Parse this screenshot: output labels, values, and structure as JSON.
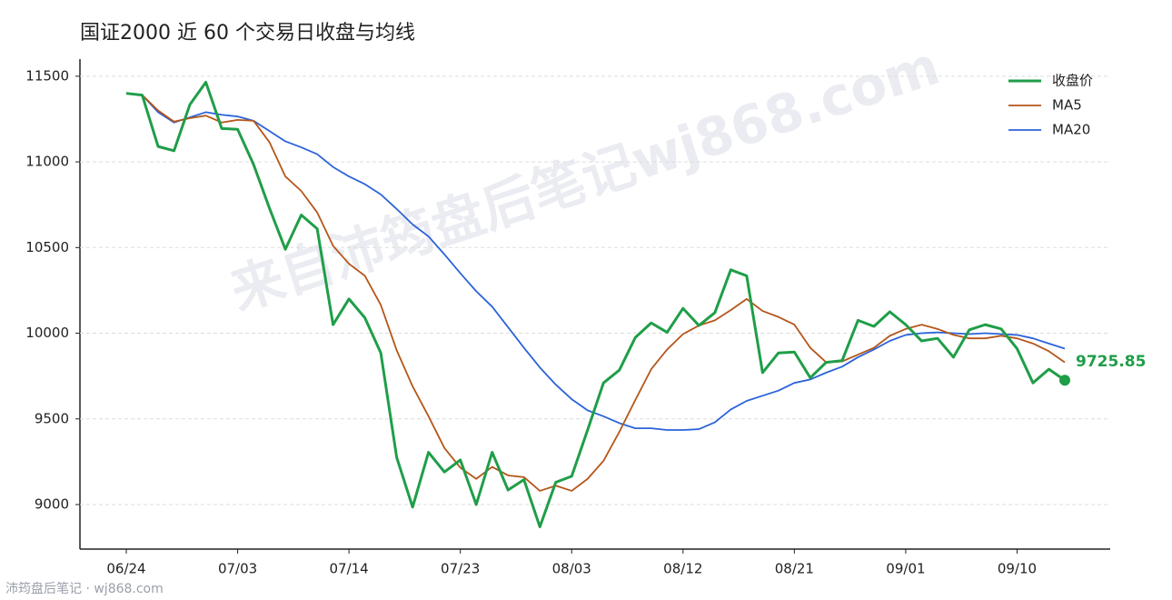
{
  "chart_data": {
    "type": "line",
    "title": "国证2000 近 60 个交易日收盘与均线",
    "watermark": "来自沛筠盘后笔记wj868.com",
    "footer": "沛筠盘后笔记 · wj868.com",
    "categories": [
      "06/24",
      null,
      null,
      null,
      null,
      null,
      null,
      "07/03",
      null,
      null,
      null,
      null,
      null,
      null,
      "07/14",
      null,
      null,
      null,
      null,
      null,
      null,
      "07/23",
      null,
      null,
      null,
      null,
      null,
      null,
      "08/03",
      null,
      null,
      null,
      null,
      null,
      null,
      "08/12",
      null,
      null,
      null,
      null,
      null,
      null,
      "08/21",
      null,
      null,
      null,
      null,
      null,
      null,
      "09/01",
      null,
      null,
      null,
      null,
      null,
      null,
      "09/10",
      null,
      null,
      null
    ],
    "series": [
      {
        "name": "收盘价",
        "color": "#1f9e48",
        "width": 3,
        "values": [
          11400,
          11390,
          11090,
          11065,
          11335,
          11465,
          11195,
          11190,
          10985,
          10730,
          10490,
          10690,
          10610,
          10050,
          10200,
          10090,
          9885,
          9275,
          8985,
          9305,
          9190,
          9260,
          9000,
          9305,
          9085,
          9145,
          8870,
          9130,
          9165,
          9435,
          9710,
          9785,
          9975,
          10060,
          10005,
          10145,
          10045,
          10120,
          10370,
          10335,
          9770,
          9885,
          9890,
          9740,
          9830,
          9840,
          10075,
          10040,
          10125,
          10050,
          9955,
          9970,
          9860,
          10020,
          10050,
          10025,
          9910,
          9710,
          9790,
          9725.85
        ]
      },
      {
        "name": "MA5",
        "color": "#b5561a",
        "width": 1.8,
        "values": [
          11400,
          11390,
          11300,
          11235,
          11255,
          11270,
          11230,
          11245,
          11240,
          11115,
          10915,
          10830,
          10705,
          10510,
          10405,
          10335,
          10165,
          9900,
          9690,
          9515,
          9330,
          9215,
          9150,
          9220,
          9170,
          9160,
          9080,
          9110,
          9080,
          9150,
          9255,
          9425,
          9610,
          9790,
          9905,
          9995,
          10045,
          10075,
          10135,
          10200,
          10130,
          10095,
          10050,
          9915,
          9830,
          9835,
          9875,
          9915,
          9985,
          10025,
          10050,
          10025,
          9990,
          9970,
          9970,
          9985,
          9970,
          9940,
          9895,
          9830
        ]
      },
      {
        "name": "MA20",
        "color": "#2b63d9",
        "width": 1.8,
        "values": [
          11400,
          11390,
          11290,
          11230,
          11260,
          11290,
          11275,
          11265,
          11240,
          11180,
          11120,
          11085,
          11045,
          10970,
          10915,
          10870,
          10810,
          10725,
          10635,
          10565,
          10460,
          10350,
          10245,
          10155,
          10035,
          9915,
          9800,
          9700,
          9615,
          9550,
          9515,
          9475,
          9445,
          9445,
          9435,
          9435,
          9440,
          9480,
          9555,
          9605,
          9635,
          9665,
          9710,
          9730,
          9770,
          9805,
          9860,
          9905,
          9955,
          9990,
          10000,
          10005,
          10000,
          9995,
          10000,
          9995,
          9990,
          9970,
          9940,
          9910
        ]
      }
    ],
    "ylim": [
      8740,
      11600
    ],
    "yticks": [
      9000,
      9500,
      10000,
      10500,
      11000,
      11500
    ],
    "grid": true,
    "legend": "upper right"
  }
}
